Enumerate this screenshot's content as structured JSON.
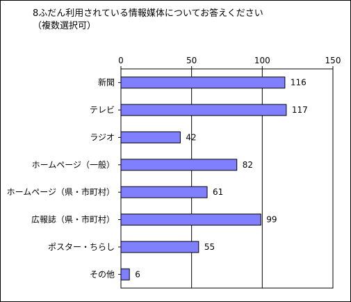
{
  "chart_data": {
    "type": "bar",
    "orientation": "horizontal",
    "title_line1": "8ふだん利用されている情報媒体についてお答えください",
    "title_line2": "（複数選択可）",
    "xlabel": "",
    "ylabel": "",
    "xlim": [
      0,
      150
    ],
    "ticks": [
      0,
      50,
      100,
      150
    ],
    "grid": true,
    "bar_color": "#8080ff",
    "categories": [
      "新聞",
      "テレビ",
      "ラジオ",
      "ホームページ（一般）",
      "ホームページ（県・市町村）",
      "広報誌（県・市町村）",
      "ポスター・ちらし",
      "その他"
    ],
    "values": [
      116,
      117,
      42,
      82,
      61,
      99,
      55,
      6
    ]
  }
}
